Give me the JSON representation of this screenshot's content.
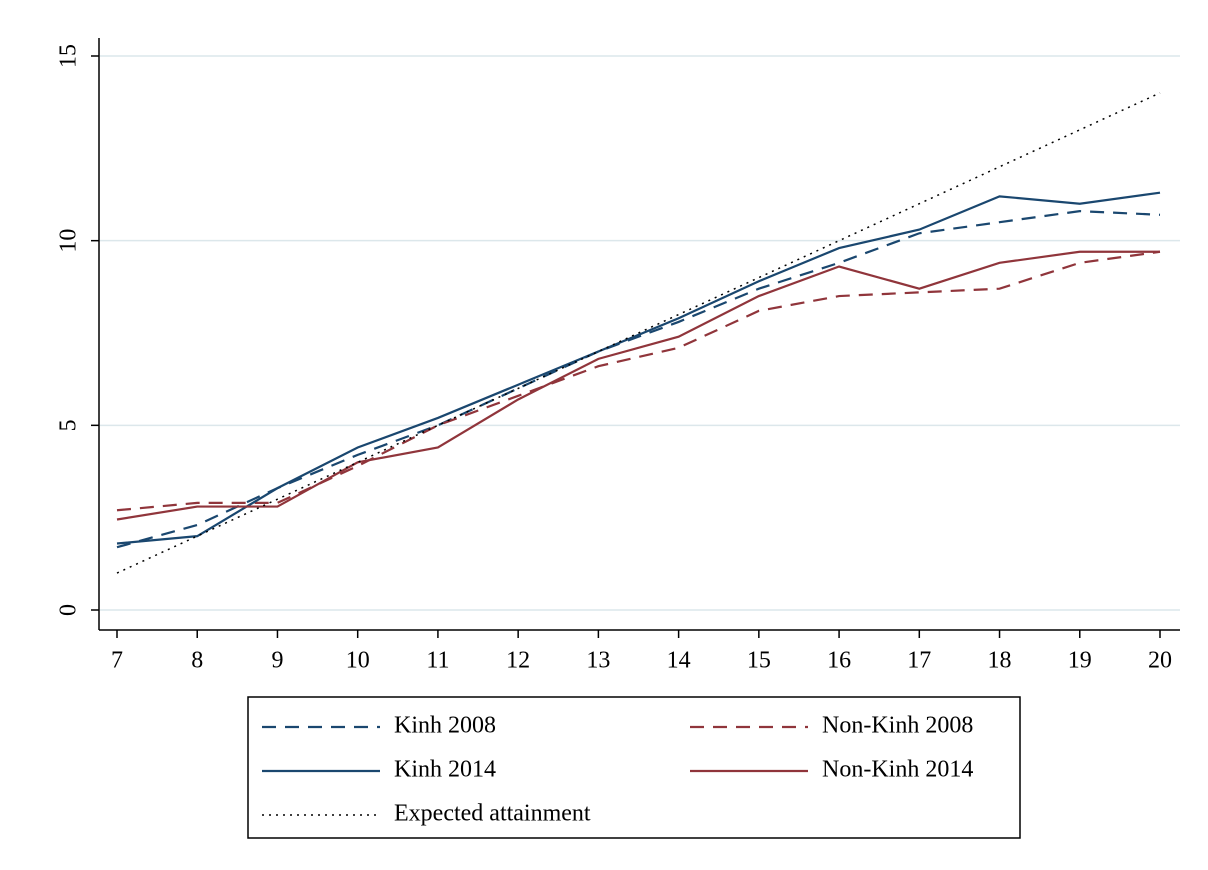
{
  "chart_data": {
    "type": "line",
    "x": [
      7,
      8,
      9,
      10,
      11,
      12,
      13,
      14,
      15,
      16,
      17,
      18,
      19,
      20
    ],
    "xlim": [
      7,
      20
    ],
    "xticks": [
      7,
      8,
      9,
      10,
      11,
      12,
      13,
      14,
      15,
      16,
      17,
      18,
      19,
      20
    ],
    "ylim": [
      0,
      15
    ],
    "yticks": [
      0,
      5,
      10,
      15
    ],
    "grid": true,
    "legend": "bottom",
    "series": [
      {
        "name": "Kinh 2008",
        "color": "#1a476f",
        "dash": "dashed",
        "values": [
          1.7,
          2.3,
          3.3,
          4.2,
          5.0,
          6.0,
          7.0,
          7.8,
          8.7,
          9.4,
          10.2,
          10.5,
          10.8,
          10.7
        ]
      },
      {
        "name": "Non-Kinh 2008",
        "color": "#90353b",
        "dash": "dashed",
        "values": [
          2.7,
          2.9,
          2.9,
          3.9,
          5.0,
          5.8,
          6.6,
          7.1,
          8.1,
          8.5,
          8.6,
          8.7,
          9.4,
          9.7
        ]
      },
      {
        "name": "Kinh 2014",
        "color": "#1a476f",
        "dash": "solid",
        "values": [
          1.8,
          2.0,
          3.3,
          4.4,
          5.2,
          6.1,
          7.0,
          7.9,
          8.9,
          9.8,
          10.3,
          11.2,
          11.0,
          11.3
        ]
      },
      {
        "name": "Non-Kinh 2014",
        "color": "#90353b",
        "dash": "solid",
        "values": [
          2.45,
          2.8,
          2.8,
          4.0,
          4.4,
          5.7,
          6.8,
          7.4,
          8.5,
          9.3,
          8.7,
          9.4,
          9.7,
          9.7
        ]
      },
      {
        "name": "Expected attainment",
        "color": "#000000",
        "dash": "dotted",
        "values": [
          1,
          2,
          3,
          4,
          5,
          6,
          7,
          8,
          9,
          10,
          11,
          12,
          13,
          14
        ]
      }
    ]
  }
}
